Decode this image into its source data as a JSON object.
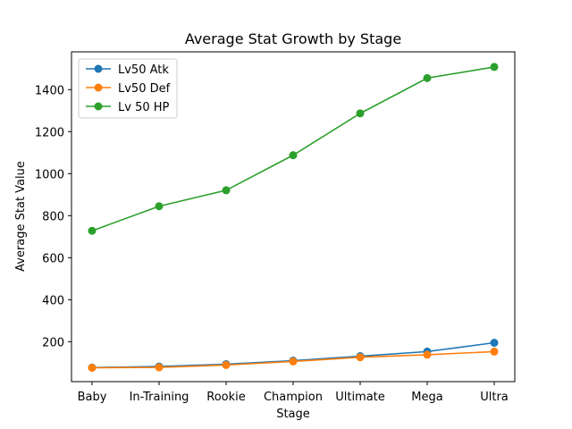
{
  "chart_data": {
    "type": "line",
    "title": "Average Stat Growth by Stage",
    "xlabel": "Stage",
    "ylabel": "Average Stat Value",
    "categories": [
      "Baby",
      "In-Training",
      "Rookie",
      "Champion",
      "Ultimate",
      "Mega",
      "Ultra"
    ],
    "ylim": [
      10,
      1580
    ],
    "yticks": [
      200,
      400,
      600,
      800,
      1000,
      1200,
      1400
    ],
    "grid": false,
    "legend_position": "upper-left",
    "series": [
      {
        "name": "Lv50 Atk",
        "color": "#1f77b4",
        "values": [
          77,
          82,
          93,
          110,
          131,
          153,
          195
        ]
      },
      {
        "name": "Lv50 Def",
        "color": "#ff7f0e",
        "values": [
          76,
          78,
          89,
          106,
          126,
          138,
          153
        ]
      },
      {
        "name": "Lv 50 HP",
        "color": "#2ca02c",
        "values": [
          728,
          845,
          921,
          1088,
          1287,
          1455,
          1508
        ]
      }
    ]
  }
}
